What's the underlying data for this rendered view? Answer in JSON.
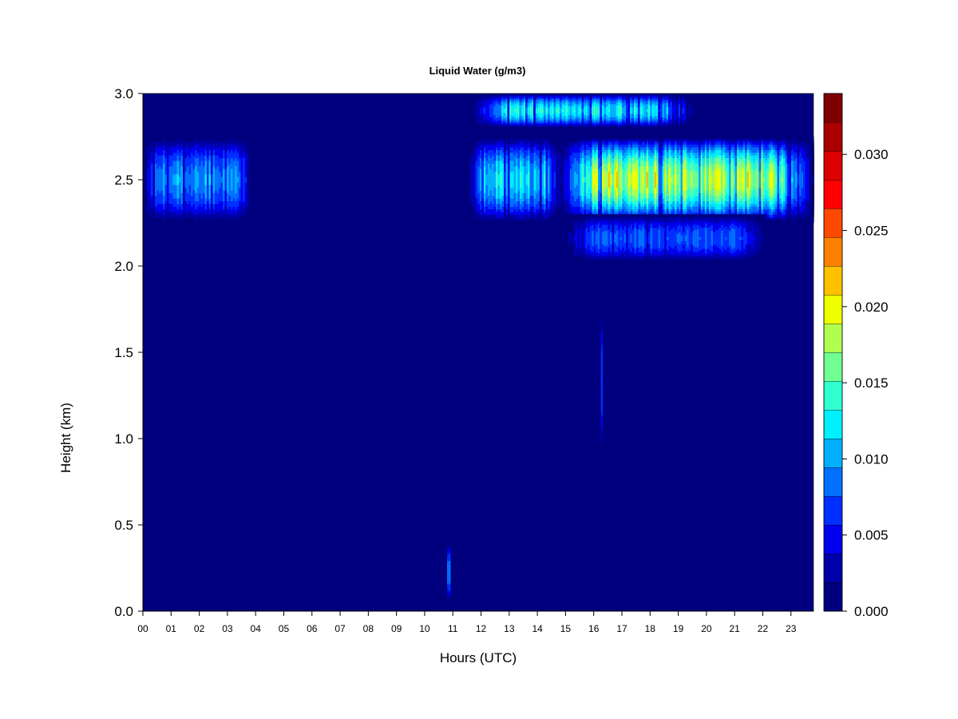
{
  "chart_data": {
    "type": "heatmap",
    "title": "Liquid Water (g/m3)",
    "xlabel": "Hours (UTC)",
    "ylabel": "Height (km)",
    "xlim": [
      0,
      23.8
    ],
    "ylim": [
      0,
      3.0
    ],
    "x_ticks": [
      "00",
      "01",
      "02",
      "03",
      "04",
      "05",
      "06",
      "07",
      "08",
      "09",
      "10",
      "11",
      "12",
      "13",
      "14",
      "15",
      "16",
      "17",
      "18",
      "19",
      "20",
      "21",
      "22",
      "23"
    ],
    "y_ticks": [
      "0.0",
      "0.5",
      "1.0",
      "1.5",
      "2.0",
      "2.5",
      "3.0"
    ],
    "colorbar": {
      "min": 0.0,
      "max": 0.034,
      "levels": 18,
      "tick_values": [
        0.0,
        0.005,
        0.01,
        0.015,
        0.02,
        0.025,
        0.03
      ],
      "tick_labels": [
        "0.000",
        "0.005",
        "0.010",
        "0.015",
        "0.020",
        "0.025",
        "0.030"
      ],
      "colors": [
        "#00007f",
        "#0000a8",
        "#0000ee",
        "#0030ff",
        "#0070ff",
        "#00b0ff",
        "#00f0ff",
        "#30ffd0",
        "#70ff90",
        "#b0ff50",
        "#f0ff00",
        "#ffc000",
        "#ff8000",
        "#ff4800",
        "#ff0000",
        "#dd0000",
        "#aa0000",
        "#7f0000"
      ]
    },
    "cloud_layers": [
      {
        "x_start": 0.0,
        "x_end": 3.9,
        "base_km": 2.25,
        "top_km": 2.75,
        "peak_g_m3": 0.01
      },
      {
        "x_start": 11.6,
        "x_end": 14.8,
        "base_km": 2.25,
        "top_km": 2.75,
        "peak_g_m3": 0.012
      },
      {
        "x_start": 14.8,
        "x_end": 23.8,
        "base_km": 2.25,
        "top_km": 2.75,
        "peak_g_m3": 0.019
      },
      {
        "x_start": 15.0,
        "x_end": 22.1,
        "base_km": 2.02,
        "top_km": 2.3,
        "peak_g_m3": 0.008
      },
      {
        "x_start": 11.8,
        "x_end": 19.5,
        "base_km": 2.8,
        "top_km": 3.0,
        "peak_g_m3": 0.013
      },
      {
        "x_start": 10.8,
        "x_end": 10.9,
        "base_km": 0.05,
        "top_km": 0.4,
        "peak_g_m3": 0.01
      },
      {
        "x_start": 16.25,
        "x_end": 16.3,
        "base_km": 0.92,
        "top_km": 1.75,
        "peak_g_m3": 0.009
      }
    ]
  }
}
